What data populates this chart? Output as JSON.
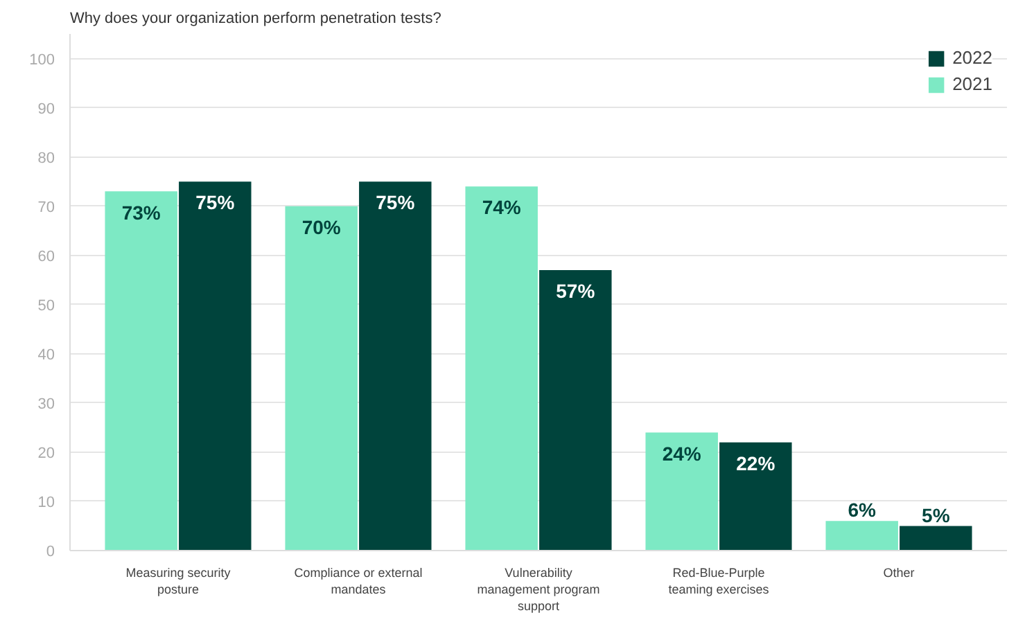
{
  "chart_data": {
    "type": "bar",
    "title": "Why does your organization perform penetration tests?",
    "categories": [
      "Measuring security posture",
      "Compliance or external mandates",
      "Vulnerability management program support",
      "Red-Blue-Purple teaming exercises",
      "Other"
    ],
    "series": [
      {
        "name": "2021",
        "color": "#7de9c4",
        "values": [
          73,
          70,
          74,
          24,
          6
        ],
        "value_labels": [
          "73%",
          "70%",
          "74%",
          "24%",
          "6%"
        ]
      },
      {
        "name": "2022",
        "color": "#00443c",
        "values": [
          75,
          75,
          57,
          22,
          5
        ],
        "value_labels": [
          "75%",
          "75%",
          "57%",
          "22%",
          "5%"
        ]
      }
    ],
    "ylim": [
      0,
      105
    ],
    "yticks": [
      0,
      10,
      20,
      30,
      40,
      50,
      60,
      70,
      80,
      90,
      100
    ],
    "grid": "y",
    "legend": "top right"
  }
}
